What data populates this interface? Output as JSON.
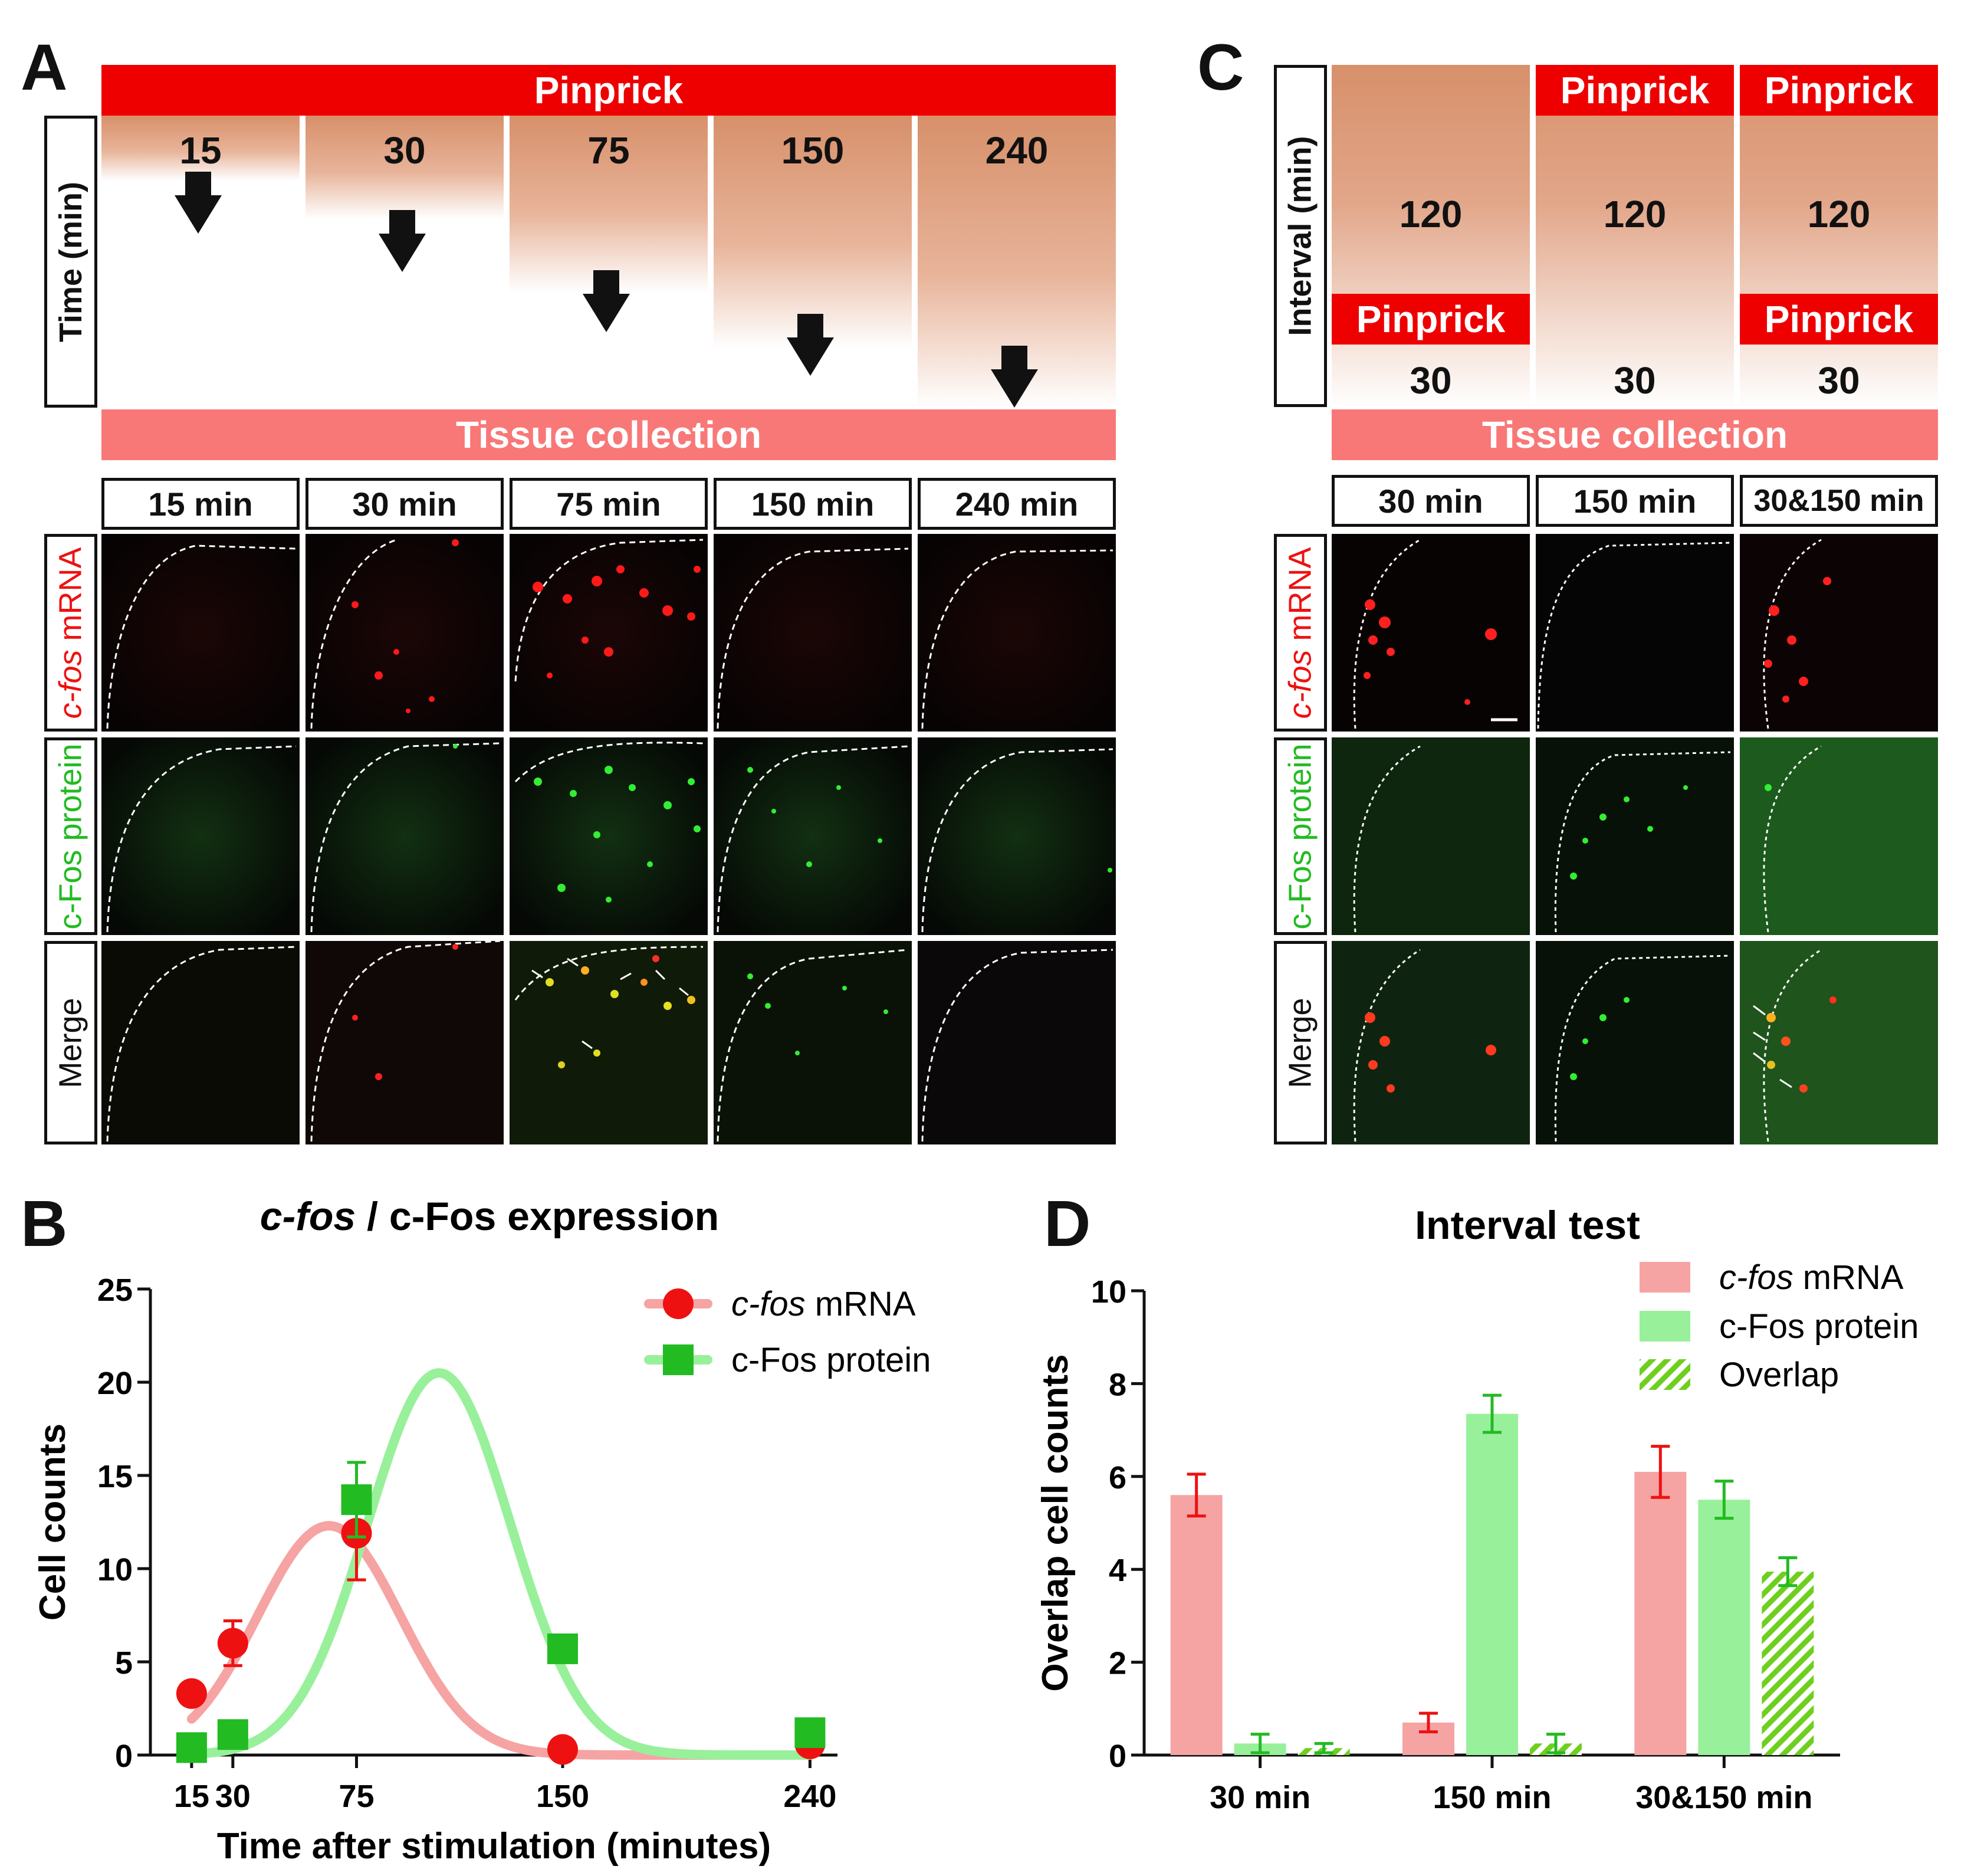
{
  "panels": {
    "a": "A",
    "b": "B",
    "c": "C",
    "d": "D"
  },
  "panel_a": {
    "top_bar": "Pinprick",
    "axis_label": "Time (min)",
    "times": [
      "15",
      "30",
      "75",
      "150",
      "240"
    ],
    "bottom_bar": "Tissue collection",
    "column_headers": [
      "15 min",
      "30 min",
      "75 min",
      "150 min",
      "240 min"
    ],
    "row_labels": {
      "mrna_italic": "c-fos",
      "mrna_rest": " mRNA",
      "protein": "c-Fos protein",
      "merge": "Merge"
    }
  },
  "panel_c": {
    "axis_label": "Interval (min)",
    "top_pinprick": [
      "Pinprick",
      "Pinprick"
    ],
    "interval": [
      "120",
      "120",
      "120"
    ],
    "lower_pinprick": [
      "Pinprick",
      "Pinprick"
    ],
    "thirty": [
      "30",
      "30",
      "30"
    ],
    "bottom_bar": "Tissue collection",
    "column_headers": [
      "30 min",
      "150 min",
      "30&150 min"
    ]
  },
  "colors": {
    "mrna": "#ee1111",
    "protein": "#22bb22",
    "mrna_fill": "#f6a3a3",
    "protein_fill": "#99f09a",
    "red": "#ee0000",
    "pink": "#f87878"
  },
  "chart_data": [
    {
      "type": "scatter",
      "title_italic": "c-fos",
      "title_rest": " / c-Fos expression",
      "xlabel": "Time after stimulation (minutes)",
      "ylabel": "Cell counts",
      "xlim": [
        0,
        250
      ],
      "ylim": [
        0,
        25
      ],
      "xticks": [
        15,
        30,
        75,
        150,
        240
      ],
      "yticks": [
        0,
        5,
        10,
        15,
        20,
        25
      ],
      "series": [
        {
          "name_italic": "c-fos",
          "name_rest": " mRNA",
          "marker": "circle",
          "x": [
            15,
            30,
            75,
            150,
            240
          ],
          "y": [
            3.3,
            6.0,
            11.9,
            0.3,
            0.6
          ],
          "err": [
            0.3,
            1.2,
            2.5,
            0.2,
            0.2
          ],
          "fit": {
            "amp": 12.3,
            "mu": 65,
            "sigma": 26
          }
        },
        {
          "name": "c-Fos protein",
          "marker": "square",
          "x": [
            15,
            30,
            75,
            150,
            240
          ],
          "y": [
            0.4,
            1.1,
            13.7,
            5.7,
            1.2
          ],
          "err": [
            0.1,
            0.3,
            2.0,
            0.4,
            0.2
          ],
          "fit": {
            "amp": 20.5,
            "mu": 105,
            "sigma": 26
          }
        }
      ]
    },
    {
      "type": "bar",
      "title": "Interval test",
      "ylabel": "Overlap cell counts",
      "ylim": [
        0,
        10
      ],
      "yticks": [
        0,
        2,
        4,
        6,
        8,
        10
      ],
      "categories": [
        "30 min",
        "150 min",
        "30&150 min"
      ],
      "series": [
        {
          "name_italic": "c-fos",
          "name_rest": " mRNA",
          "values": [
            5.6,
            0.7,
            6.1
          ],
          "err": [
            0.45,
            0.2,
            0.55
          ]
        },
        {
          "name": "c-Fos protein",
          "values": [
            0.25,
            7.35,
            5.5
          ],
          "err": [
            0.2,
            0.4,
            0.4
          ]
        },
        {
          "name": "Overlap",
          "values": [
            0.15,
            0.25,
            3.95
          ],
          "err": [
            0.1,
            0.2,
            0.3
          ]
        }
      ]
    }
  ]
}
